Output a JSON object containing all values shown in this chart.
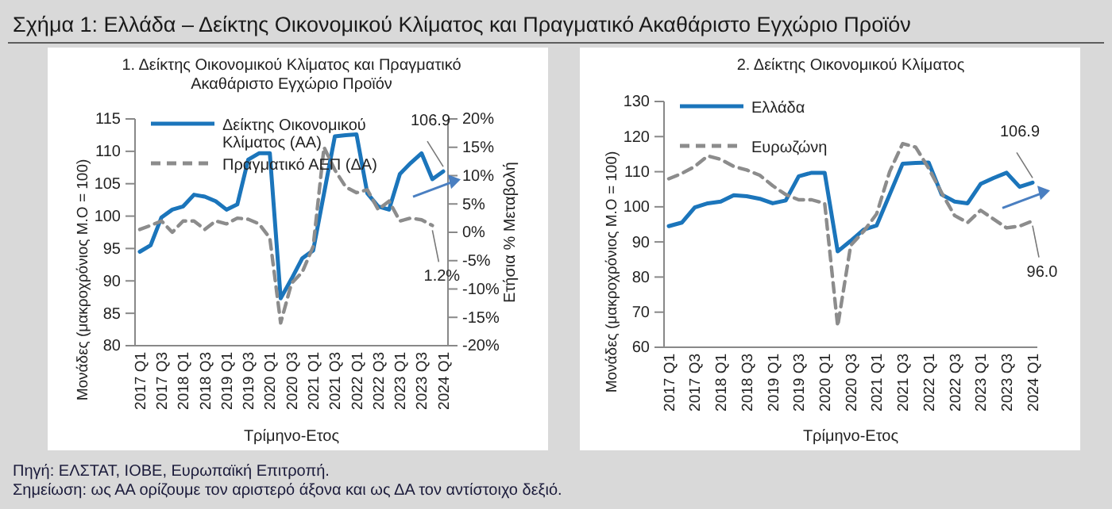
{
  "chart_data": [
    {
      "type": "line",
      "title": "Σχήμα 1: Ελλάδα – Δείκτης Οικονομικού Κλίματος και Πραγματικό Ακαθάριστο Εγχώριο Προϊόν",
      "subtitle": "1. Δείκτης Οικονομικού Κλίματος και Πραγματικό Ακαθάριστο Εγχώριο Προϊόν",
      "xlabel": "Τρίμηνο-Ετος",
      "ylabel": "Μονάδες (μακροχρόνιος Μ.Ο = 100)",
      "y2label": "Ετήσια % Μεταβολή",
      "categories": [
        "2017 Q1",
        null,
        "2017 Q3",
        null,
        "2018 Q1",
        null,
        "2018 Q3",
        null,
        "2019 Q1",
        null,
        "2019 Q3",
        null,
        "2020 Q1",
        null,
        "2020 Q3",
        null,
        "2021 Q1",
        null,
        "2021 Q3",
        null,
        "2022 Q1",
        null,
        "2022 Q3",
        null,
        "2023 Q1",
        null,
        "2023 Q3",
        null,
        "2024 Q1"
      ],
      "series": [
        {
          "name": "Δείκτης Οικονομικού Κλίματος (ΑΑ)",
          "color": "#1b75bb",
          "line_style": "solid",
          "values": [
            94.5,
            95.5,
            99.8,
            101,
            101.5,
            103.3,
            103,
            102.3,
            101,
            101.8,
            108.7,
            109.7,
            109.7,
            87.3,
            90.3,
            93.5,
            94.7,
            103.5,
            112.3,
            112.5,
            112.6,
            103.5,
            101.5,
            101,
            106.5,
            108.2,
            109.7,
            105.7,
            106.9
          ],
          "value_labels": [
            null,
            null,
            null,
            null,
            null,
            null,
            null,
            null,
            null,
            null,
            null,
            null,
            null,
            null,
            null,
            null,
            null,
            null,
            null,
            null,
            null,
            null,
            null,
            null,
            null,
            null,
            null,
            null,
            "106.9"
          ]
        },
        {
          "name": "Πραγματικό ΑΕΠ (ΔΑ)",
          "color": "#8c8c8c",
          "line_style": "dashed",
          "axis": "y2",
          "values": [
            0.5,
            1.2,
            2,
            0,
            2,
            2,
            0.5,
            2,
            1.5,
            2.5,
            2.3,
            1.5,
            -1,
            -16,
            -9,
            -7,
            -2.5,
            15,
            11,
            8,
            7,
            7.5,
            4,
            5.5,
            2,
            2.5,
            2.2,
            1.2,
            null
          ],
          "value_labels": [
            null,
            null,
            null,
            null,
            null,
            null,
            null,
            null,
            null,
            null,
            null,
            null,
            null,
            null,
            null,
            null,
            null,
            null,
            null,
            null,
            null,
            null,
            null,
            null,
            null,
            null,
            null,
            "1.2%",
            null
          ]
        }
      ],
      "ylim": [
        80,
        115
      ],
      "yticks": [
        80,
        85,
        90,
        95,
        100,
        105,
        110,
        115
      ],
      "y2lim": [
        -20,
        20
      ],
      "y2ticks": [
        {
          "value": -20,
          "label": "-20%"
        },
        {
          "value": -15,
          "label": "-15%"
        },
        {
          "value": -10,
          "label": "-10%"
        },
        {
          "value": -5,
          "label": "-5%"
        },
        {
          "value": 0,
          "label": "0%"
        },
        {
          "value": 5,
          "label": "5%"
        },
        {
          "value": 10,
          "label": "10%"
        },
        {
          "value": 15,
          "label": "15%"
        },
        {
          "value": 20,
          "label": "20%"
        }
      ],
      "grid": false,
      "legend": "top left",
      "marker": "none",
      "annotations": [
        "Πηγή: ΕΛΣΤΑΤ, ΙΟΒΕ, Ευρωπαϊκή Επιτροπή.",
        "Σημείωση: ως ΑΑ ορίζουμε τον αριστερό άξονα και ως ΔΑ τον αντίστοιχο δεξιό."
      ]
    },
    {
      "type": "line",
      "title": "2. Δείκτης Οικονομικού Κλίματος",
      "xlabel": "Τρίμηνο-Ετος",
      "ylabel": "Μονάδες (μακροχρόνιος Μ.Ο = 100)",
      "categories": [
        "2017 Q1",
        null,
        "2017 Q3",
        null,
        "2018 Q1",
        null,
        "2018 Q3",
        null,
        "2019 Q1",
        null,
        "2019 Q3",
        null,
        "2020 Q1",
        null,
        "2020 Q3",
        null,
        "2021 Q1",
        null,
        "2021 Q3",
        null,
        "2022 Q1",
        null,
        "2022 Q3",
        null,
        "2023 Q1",
        null,
        "2023 Q3",
        null,
        "2024 Q1"
      ],
      "series": [
        {
          "name": "Ελλάδα",
          "color": "#1b75bb",
          "line_style": "solid",
          "values": [
            94.5,
            95.5,
            99.8,
            101,
            101.5,
            103.3,
            103,
            102.3,
            101,
            101.8,
            108.7,
            109.7,
            109.7,
            87.3,
            90.3,
            93.5,
            94.7,
            103.5,
            112.3,
            112.5,
            112.6,
            103.5,
            101.5,
            101,
            106.5,
            108.2,
            109.7,
            105.7,
            106.9
          ],
          "value_labels": [
            null,
            null,
            null,
            null,
            null,
            null,
            null,
            null,
            null,
            null,
            null,
            null,
            null,
            null,
            null,
            null,
            null,
            null,
            null,
            null,
            null,
            null,
            null,
            null,
            null,
            null,
            null,
            null,
            "106.9"
          ]
        },
        {
          "name": "Ευρωζώνη",
          "color": "#8c8c8c",
          "line_style": "dashed",
          "values": [
            108,
            109.5,
            111.5,
            114.5,
            113.5,
            111.5,
            110.5,
            109,
            106,
            103.5,
            102,
            102,
            101,
            66,
            89,
            93,
            98,
            110,
            118,
            117,
            111,
            104,
            97.5,
            95.5,
            99,
            96.5,
            94,
            94.5,
            96.0
          ],
          "value_labels": [
            null,
            null,
            null,
            null,
            null,
            null,
            null,
            null,
            null,
            null,
            null,
            null,
            null,
            null,
            null,
            null,
            null,
            null,
            null,
            null,
            null,
            null,
            null,
            null,
            null,
            null,
            null,
            null,
            "96.0"
          ]
        }
      ],
      "ylim": [
        60,
        130
      ],
      "yticks": [
        60,
        70,
        80,
        90,
        100,
        110,
        120,
        130
      ],
      "grid": false,
      "legend": "top left",
      "marker": "none"
    }
  ]
}
